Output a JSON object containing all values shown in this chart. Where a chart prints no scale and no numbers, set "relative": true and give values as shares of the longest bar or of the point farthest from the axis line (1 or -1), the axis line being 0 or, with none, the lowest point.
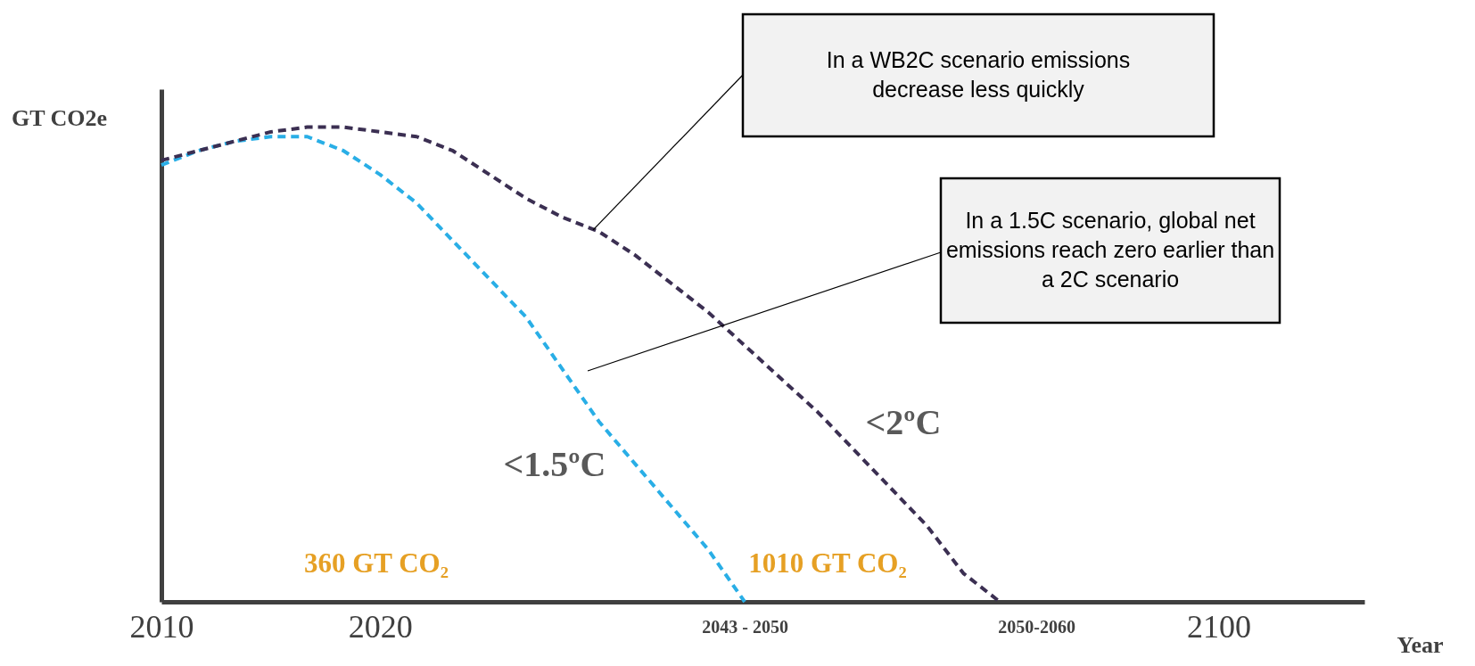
{
  "chart_data": {
    "type": "line",
    "relative": true,
    "ylabel": "GT CO2e",
    "xlabel": "Year",
    "line_style": "dashed",
    "categories": [
      "2010",
      null,
      null,
      null,
      null,
      null,
      "2020",
      null,
      null,
      null,
      null,
      null,
      null,
      null,
      null,
      null,
      "2043 - 2050",
      null,
      null,
      null,
      null,
      null,
      null,
      null,
      "2050-2060",
      null,
      null,
      null,
      null,
      "2100",
      null,
      null,
      null,
      null
    ],
    "series": [
      {
        "name": "<1.5ºC",
        "color": "#29aee6",
        "values": [
          0.92,
          0.95,
          0.97,
          0.98,
          0.98,
          0.95,
          0.9,
          0.84,
          0.76,
          0.68,
          0.6,
          0.49,
          0.38,
          0.29,
          0.2,
          0.11,
          0,
          null,
          null,
          null,
          null,
          null,
          null,
          null,
          null,
          null,
          null,
          null,
          null,
          null,
          null,
          null,
          null,
          null
        ]
      },
      {
        "name": "<2ºC",
        "color": "#3b2f52",
        "values": [
          0.93,
          0.95,
          0.97,
          0.99,
          1,
          1,
          0.99,
          0.98,
          0.95,
          0.9,
          0.85,
          0.81,
          0.78,
          0.73,
          0.67,
          0.61,
          0.54,
          0.47,
          0.4,
          0.32,
          0.24,
          0.16,
          0.06,
          0,
          null,
          null,
          null,
          null,
          null,
          null,
          null,
          null,
          null,
          null
        ]
      }
    ],
    "annotations": [
      "In a WB2C scenario emissions decrease less quickly",
      "In a 1.5C scenario, global net emissions reach zero earlier than a 2C scenario",
      "360 GT CO₂",
      "1010 GT CO₂"
    ]
  }
}
